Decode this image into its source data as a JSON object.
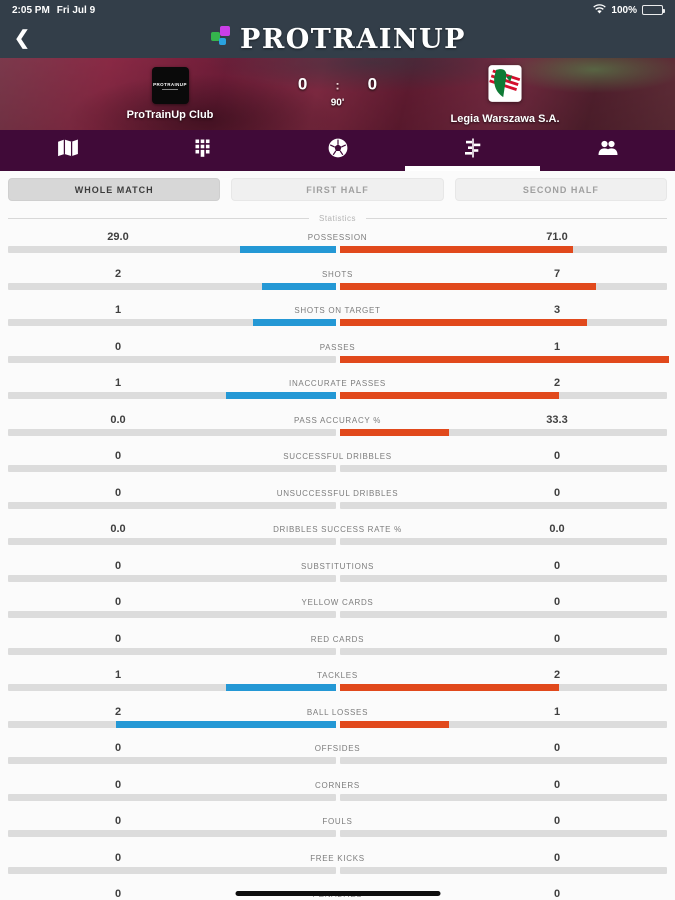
{
  "status_bar": {
    "time": "2:05 PM",
    "date": "Fri Jul 9",
    "battery": "100%"
  },
  "header": {
    "title": "PROTRAINUP"
  },
  "match": {
    "home": {
      "name": "ProTrainUp  Club",
      "logo_text": "PROTRAINUP"
    },
    "away": {
      "name": "Legia Warszawa S.A."
    },
    "score_home": "0",
    "score_sep": ":",
    "score_away": "0",
    "minute": "90'"
  },
  "tabs": [
    {
      "name": "pitch-map"
    },
    {
      "name": "formation"
    },
    {
      "name": "ball-events"
    },
    {
      "name": "statistics",
      "active": true
    },
    {
      "name": "team"
    }
  ],
  "filters": {
    "options": [
      {
        "label": "WHOLE MATCH",
        "selected": true
      },
      {
        "label": "FIRST HALF",
        "selected": false
      },
      {
        "label": "SECOND HALF",
        "selected": false
      }
    ]
  },
  "section_title": "Statistics",
  "chart_data": {
    "type": "bar",
    "orientation": "horizontal-paired",
    "legend_position": "none",
    "series": [
      {
        "name": "ProTrainUp Club",
        "color": "#2498d5"
      },
      {
        "name": "Legia Warszawa S.A.",
        "color": "#e1491c"
      }
    ],
    "rows": [
      {
        "label": "POSSESSION",
        "home": "29.0",
        "away": "71.0",
        "percent": true
      },
      {
        "label": "SHOTS",
        "home": "2",
        "away": "7",
        "percent": false
      },
      {
        "label": "SHOTS ON TARGET",
        "home": "1",
        "away": "3",
        "percent": false
      },
      {
        "label": "PASSES",
        "home": "0",
        "away": "1",
        "percent": false
      },
      {
        "label": "INACCURATE PASSES",
        "home": "1",
        "away": "2",
        "percent": false
      },
      {
        "label": "PASS ACCURACY %",
        "home": "0.0",
        "away": "33.3",
        "percent": true
      },
      {
        "label": "SUCCESSFUL DRIBBLES",
        "home": "0",
        "away": "0",
        "percent": false
      },
      {
        "label": "UNSUCCESSFUL DRIBBLES",
        "home": "0",
        "away": "0",
        "percent": false
      },
      {
        "label": "DRIBBLES SUCCESS RATE %",
        "home": "0.0",
        "away": "0.0",
        "percent": true
      },
      {
        "label": "SUBSTITUTIONS",
        "home": "0",
        "away": "0",
        "percent": false
      },
      {
        "label": "YELLOW CARDS",
        "home": "0",
        "away": "0",
        "percent": false
      },
      {
        "label": "RED CARDS",
        "home": "0",
        "away": "0",
        "percent": false
      },
      {
        "label": "TACKLES",
        "home": "1",
        "away": "2",
        "percent": false
      },
      {
        "label": "BALL LOSSES",
        "home": "2",
        "away": "1",
        "percent": false
      },
      {
        "label": "OFFSIDES",
        "home": "0",
        "away": "0",
        "percent": false
      },
      {
        "label": "CORNERS",
        "home": "0",
        "away": "0",
        "percent": false
      },
      {
        "label": "FOULS",
        "home": "0",
        "away": "0",
        "percent": false
      },
      {
        "label": "FREE KICKS",
        "home": "0",
        "away": "0",
        "percent": false
      },
      {
        "label": "PENALTIES",
        "home": "0",
        "away": "0",
        "percent": false
      }
    ]
  }
}
